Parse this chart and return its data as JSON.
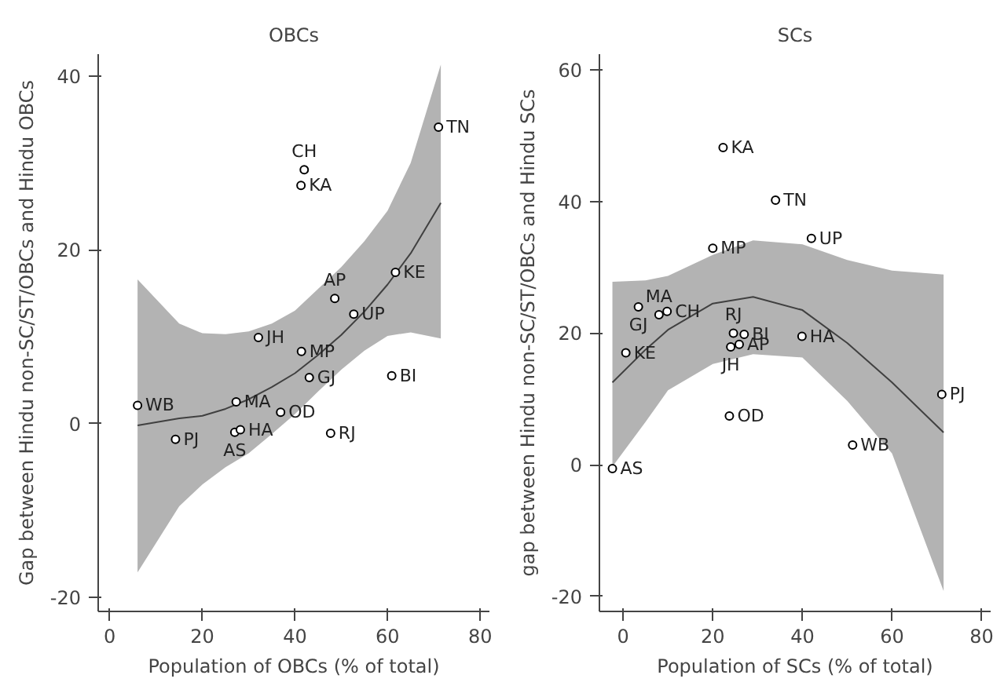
{
  "chart_data": [
    {
      "type": "scatter",
      "title": "OBCs",
      "xlabel": "Population of OBCs (% of total)",
      "ylabel": "Gap between Hindu non-SC/ST/OBCs and Hindu OBCs",
      "xlim": [
        -2.5,
        82
      ],
      "ylim": [
        -21.6,
        42.5
      ],
      "xticks": [
        0,
        20,
        40,
        60,
        80
      ],
      "yticks": [
        -20,
        0,
        20,
        40
      ],
      "grid": false,
      "series": [
        {
          "marker": "circle",
          "color": "#000000",
          "x": [
            6.0,
            14.2,
            27.3,
            27.0,
            28.2,
            36.9,
            41.4,
            43.1,
            47.7,
            60.9,
            32.1,
            52.7,
            48.6,
            61.7,
            41.3,
            42.0,
            71.0
          ],
          "values": [
            2.1,
            -1.8,
            2.5,
            -1.0,
            -0.7,
            1.3,
            8.3,
            5.3,
            -1.1,
            5.5,
            9.9,
            12.6,
            14.4,
            17.4,
            27.4,
            29.2,
            34.1
          ]
        },
        {
          "type": "line",
          "marker": "none",
          "color": "#404040",
          "x": [
            6,
            15,
            20,
            25,
            30,
            35,
            40,
            45,
            50,
            55,
            60,
            65,
            71.5
          ],
          "values": [
            -0.2,
            0.6,
            0.9,
            1.7,
            2.8,
            4.2,
            5.8,
            7.9,
            10.2,
            12.9,
            16.0,
            19.6,
            25.4
          ],
          "lower": [
            -17.1,
            -9.5,
            -7.0,
            -5.0,
            -3.4,
            -1.2,
            1.1,
            3.7,
            6.2,
            8.4,
            10.1,
            10.5,
            9.8
          ],
          "upper": [
            16.6,
            11.5,
            10.4,
            10.3,
            10.6,
            11.5,
            13.0,
            15.5,
            18.0,
            21.0,
            24.5,
            30.0,
            41.3
          ]
        }
      ],
      "annotations": [
        {
          "text": "WB",
          "x": 6.0,
          "y": 2.1
        },
        {
          "text": "PJ",
          "x": 14.2,
          "y": -1.8
        },
        {
          "text": "MA",
          "x": 27.3,
          "y": 2.5
        },
        {
          "text": "AS",
          "x": 27.0,
          "y": -1.0
        },
        {
          "text": "HA",
          "x": 28.2,
          "y": -0.7
        },
        {
          "text": "OD",
          "x": 36.9,
          "y": 1.3
        },
        {
          "text": "MP",
          "x": 41.4,
          "y": 8.3
        },
        {
          "text": "GJ",
          "x": 43.1,
          "y": 5.3
        },
        {
          "text": "RJ",
          "x": 47.7,
          "y": -1.1
        },
        {
          "text": "BI",
          "x": 60.9,
          "y": 5.5
        },
        {
          "text": "JH",
          "x": 32.1,
          "y": 9.9
        },
        {
          "text": "UP",
          "x": 52.7,
          "y": 12.6
        },
        {
          "text": "AP",
          "x": 48.6,
          "y": 14.4
        },
        {
          "text": "KE",
          "x": 61.7,
          "y": 17.4
        },
        {
          "text": "KA",
          "x": 41.3,
          "y": 27.4
        },
        {
          "text": "CH",
          "x": 42.0,
          "y": 29.2
        },
        {
          "text": "TN",
          "x": 71.0,
          "y": 34.1
        }
      ]
    },
    {
      "type": "scatter",
      "title": "SCs",
      "xlabel": "Population of SCs (% of total)",
      "ylabel": "gap between Hindu non-SC/ST/OBCs and Hindu SCs",
      "xlim": [
        -5.3,
        82
      ],
      "ylim": [
        -22.3,
        62.4
      ],
      "xticks": [
        0,
        20,
        40,
        60,
        80
      ],
      "yticks": [
        -20,
        0,
        20,
        40,
        60
      ],
      "grid": false,
      "series": [
        {
          "marker": "circle",
          "color": "#000000",
          "x": [
            -2.4,
            0.6,
            8.0,
            9.8,
            3.4,
            20.0,
            22.3,
            34.0,
            42.0,
            24.6,
            27.0,
            24.0,
            25.9,
            39.9,
            71.1,
            23.7,
            51.2
          ],
          "values": [
            -0.6,
            17.0,
            22.8,
            23.3,
            24.0,
            32.9,
            48.2,
            40.2,
            34.4,
            20.0,
            19.8,
            17.9,
            18.3,
            19.5,
            10.7,
            7.4,
            3.0
          ]
        },
        {
          "type": "line",
          "marker": "none",
          "color": "#404040",
          "x": [
            -2.4,
            5,
            10,
            20,
            29,
            40,
            50,
            60,
            71.5
          ],
          "values": [
            12.5,
            17.5,
            20.5,
            24.5,
            25.5,
            23.5,
            18.5,
            12.5,
            4.9
          ],
          "lower": [
            -0.3,
            6.5,
            11.3,
            15.3,
            16.8,
            16.3,
            9.7,
            1.7,
            -19.2
          ],
          "upper": [
            27.8,
            28.0,
            28.7,
            31.9,
            34.1,
            33.5,
            31.1,
            29.5,
            28.9
          ]
        }
      ],
      "annotations": [
        {
          "text": "AS",
          "x": -2.4,
          "y": -0.6
        },
        {
          "text": "KE",
          "x": 0.6,
          "y": 17.0
        },
        {
          "text": "MA",
          "x": 8.0,
          "y": 22.8
        },
        {
          "text": "CH",
          "x": 9.8,
          "y": 23.3
        },
        {
          "text": "GJ",
          "x": 3.4,
          "y": 24.0
        },
        {
          "text": "MP",
          "x": 20.0,
          "y": 32.9
        },
        {
          "text": "KA",
          "x": 22.3,
          "y": 48.2
        },
        {
          "text": "TN",
          "x": 34.0,
          "y": 40.2
        },
        {
          "text": "UP",
          "x": 42.0,
          "y": 34.4
        },
        {
          "text": "RJ",
          "x": 24.6,
          "y": 20.0
        },
        {
          "text": "BI",
          "x": 27.0,
          "y": 19.8
        },
        {
          "text": "JH",
          "x": 24.0,
          "y": 17.9
        },
        {
          "text": "AP",
          "x": 25.9,
          "y": 18.3
        },
        {
          "text": "HA",
          "x": 39.9,
          "y": 19.5
        },
        {
          "text": "PJ",
          "x": 71.1,
          "y": 10.7
        },
        {
          "text": "OD",
          "x": 23.7,
          "y": 7.4
        },
        {
          "text": "WB",
          "x": 51.2,
          "y": 3.0
        }
      ]
    }
  ]
}
